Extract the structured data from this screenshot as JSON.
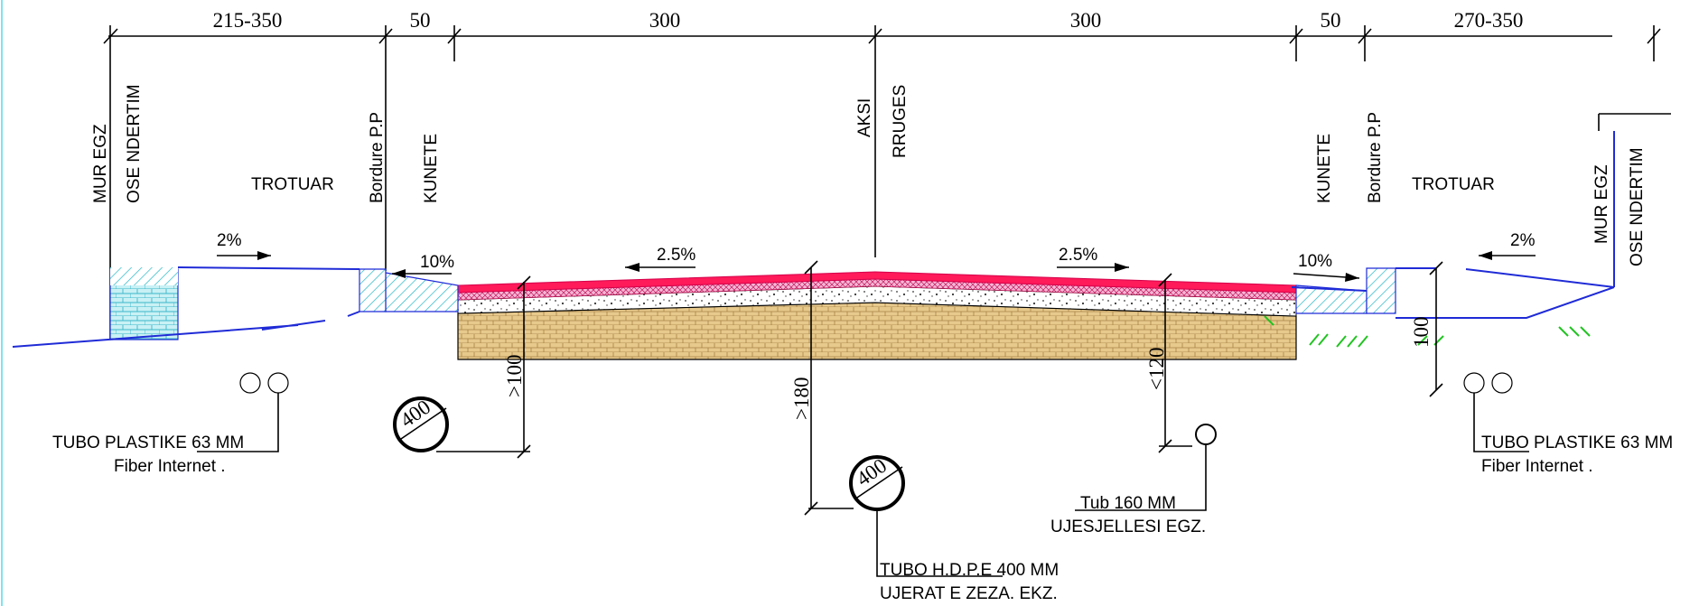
{
  "dimensions": {
    "d1": "215-350",
    "d2": "50",
    "d3": "300",
    "d4": "300",
    "d5": "50",
    "d6": "270-350"
  },
  "left": {
    "wall_line1": "MUR EGZ",
    "wall_line2": "OSE NDERTIM",
    "sidewalk": "TROTUAR",
    "curb": "Bordure P.P",
    "gutter": "KUNETE",
    "slope_sidewalk": "2%",
    "slope_gutter": "10%",
    "pipe_label": "TUBO PLASTIKE 63 MM",
    "pipe_sub": "Fiber Internet ."
  },
  "center": {
    "axis_line1": "AKSI",
    "axis_line2": "RRUGES",
    "slope_left": "2.5%",
    "slope_right": "2.5%",
    "depth_left": ">100",
    "depth_center": ">180",
    "depth_right": "<120",
    "pipe_left_dia": "400",
    "pipe_center_dia": "400",
    "hdpe_label": "TUBO H.D.P.E 400 MM",
    "hdpe_sub": "UJERAT E ZEZA. EKZ.",
    "water_label": "Tub 160 MM",
    "water_sub": "UJESJELLESI EGZ."
  },
  "right": {
    "gutter": "KUNETE",
    "curb": "Bordure P.P",
    "sidewalk": "TROTUAR",
    "wall_line1": "MUR EGZ",
    "wall_line2": "OSE NDERTIM",
    "slope_sidewalk": "2%",
    "slope_gutter": "10%",
    "depth": "100",
    "pipe_label": "TUBO PLASTIKE 63 MM",
    "pipe_sub": "Fiber Internet ."
  }
}
